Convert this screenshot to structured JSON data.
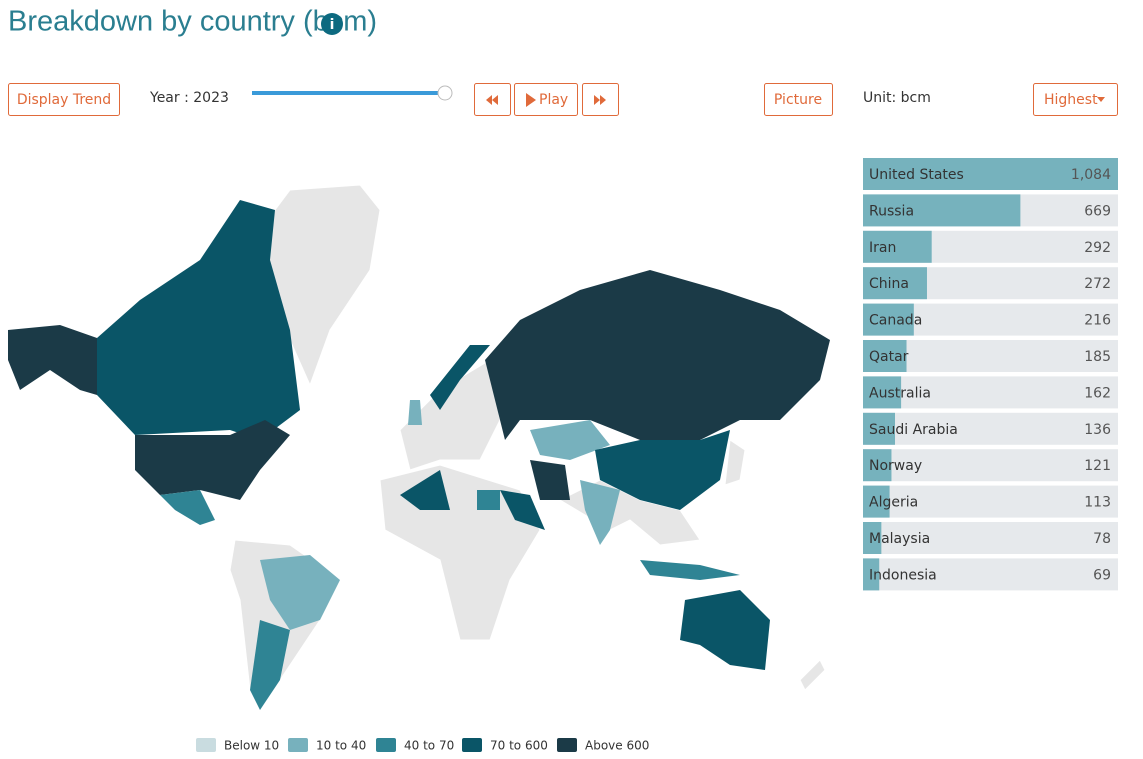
{
  "header": {
    "title": "Breakdown by country (bcm)"
  },
  "controls": {
    "display_trend": "Display Trend",
    "year": "Year : 2023",
    "play": "Play",
    "picture": "Picture",
    "unit": "Unit: bcm",
    "sort": "Highest"
  },
  "legend": [
    {
      "label": "Below 10",
      "color": "#c9dce0"
    },
    {
      "label": "10 to 40",
      "color": "#77b1bd"
    },
    {
      "label": "40 to 70",
      "color": "#2f8494"
    },
    {
      "label": "70 to 600",
      "color": "#0a5567"
    },
    {
      "label": "Above 600",
      "color": "#1b3a47"
    }
  ],
  "chart_data": {
    "type": "bar",
    "orientation": "horizontal",
    "categories": [
      "United States",
      "Russia",
      "Iran",
      "China",
      "Canada",
      "Qatar",
      "Australia",
      "Saudi Arabia",
      "Norway",
      "Algeria",
      "Malaysia",
      "Indonesia"
    ],
    "values": [
      1084,
      669,
      292,
      272,
      216,
      185,
      162,
      136,
      121,
      113,
      78,
      69
    ],
    "value_labels": [
      "1,084",
      "669",
      "292",
      "272",
      "216",
      "185",
      "162",
      "136",
      "121",
      "113",
      "78",
      "69"
    ],
    "xlim": [
      0,
      1084
    ],
    "color": "#76b2bd"
  }
}
